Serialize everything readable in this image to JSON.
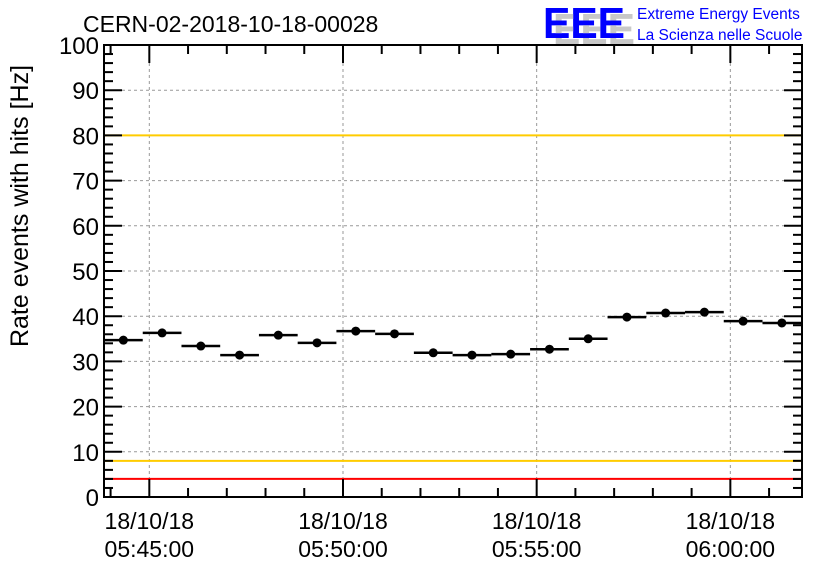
{
  "chart_data": {
    "type": "scatter",
    "title": "CERN-02-2018-10-18-00028",
    "logo": {
      "text": "EEE",
      "line1": "Extreme Energy Events",
      "line2": "La Scienza nelle Scuole"
    },
    "ylabel": "Rate events with hits [Hz]",
    "xlabel": "",
    "ylim": [
      0,
      100
    ],
    "yticks": [
      0,
      10,
      20,
      30,
      40,
      50,
      60,
      70,
      80,
      90,
      100
    ],
    "xlim_minutes": [
      -1.17,
      16.85
    ],
    "xticks": [
      {
        "minute": 0,
        "date": "18/10/18",
        "time": "05:45:00"
      },
      {
        "minute": 5,
        "date": "18/10/18",
        "time": "05:50:00"
      },
      {
        "minute": 10,
        "date": "18/10/18",
        "time": "05:55:00"
      },
      {
        "minute": 15,
        "date": "18/10/18",
        "time": "06:00:00"
      }
    ],
    "grid": true,
    "bin_width_minutes": 1,
    "x_minutes_from_0545": [
      -0.67,
      0.33,
      1.33,
      2.33,
      3.33,
      4.33,
      5.33,
      6.33,
      7.33,
      8.33,
      9.33,
      10.33,
      11.33,
      12.33,
      13.33,
      14.33,
      15.33,
      16.33
    ],
    "values": [
      34.7,
      36.3,
      33.4,
      31.4,
      35.8,
      34.1,
      36.7,
      36.1,
      31.9,
      31.4,
      31.6,
      32.7,
      35.0,
      39.8,
      40.7,
      40.9,
      38.9,
      38.5
    ],
    "reference_lines": [
      {
        "y": 100,
        "color": "#ff0000"
      },
      {
        "y": 80,
        "color": "#ffcc00"
      },
      {
        "y": 8,
        "color": "#ffcc00"
      },
      {
        "y": 4,
        "color": "#ff0000"
      }
    ],
    "colors": {
      "marker": "#000000",
      "grid": "#999999",
      "logo": "#0000ff",
      "logo_shadow": "#c8c8c8"
    }
  }
}
